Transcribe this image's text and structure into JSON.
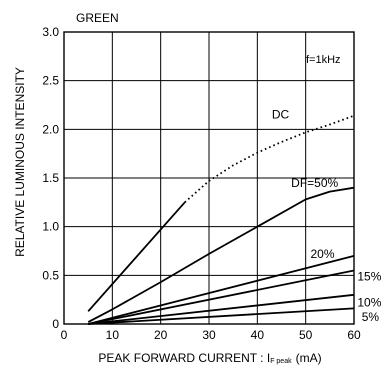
{
  "chart_data": {
    "type": "line",
    "title": "GREEN",
    "ylabel": "RELATIVE LUMINOUS INTENSITY",
    "xlabel": {
      "main": "PEAK FORWARD CURRENT : I",
      "sub": "F peak",
      "unit": "(mA)"
    },
    "annotation": "f=1kHz",
    "xlim": [
      0,
      60
    ],
    "ylim": [
      0,
      3.0
    ],
    "x_ticks": [
      "0",
      "10",
      "20",
      "30",
      "40",
      "50",
      "60"
    ],
    "y_ticks": [
      "0",
      "0.5",
      "1.0",
      "1.5",
      "2.0",
      "2.5",
      "3.0"
    ],
    "grid": true,
    "series": [
      {
        "name": "DC",
        "segments": [
          {
            "style": "solid",
            "points": [
              [
                5,
                0.13
              ],
              [
                25,
                1.25
              ]
            ]
          },
          {
            "style": "dotted",
            "points": [
              [
                25,
                1.25
              ],
              [
                30,
                1.47
              ],
              [
                35,
                1.63
              ],
              [
                40,
                1.76
              ],
              [
                45,
                1.87
              ],
              [
                50,
                1.97
              ],
              [
                55,
                2.05
              ],
              [
                60,
                2.14
              ]
            ]
          }
        ]
      },
      {
        "name": "DF=50%",
        "points": [
          [
            5,
            0.02
          ],
          [
            10,
            0.15
          ],
          [
            20,
            0.43
          ],
          [
            30,
            0.72
          ],
          [
            40,
            1.0
          ],
          [
            50,
            1.28
          ],
          [
            55,
            1.36
          ],
          [
            60,
            1.4
          ]
        ]
      },
      {
        "name": "20%",
        "points": [
          [
            5,
            0.0
          ],
          [
            60,
            0.7
          ]
        ]
      },
      {
        "name": "15%",
        "points": [
          [
            5,
            0.0
          ],
          [
            60,
            0.55
          ]
        ]
      },
      {
        "name": "10%",
        "points": [
          [
            5,
            0.0
          ],
          [
            60,
            0.3
          ]
        ]
      },
      {
        "name": "5%",
        "points": [
          [
            5,
            0.0
          ],
          [
            60,
            0.16
          ]
        ]
      }
    ]
  }
}
